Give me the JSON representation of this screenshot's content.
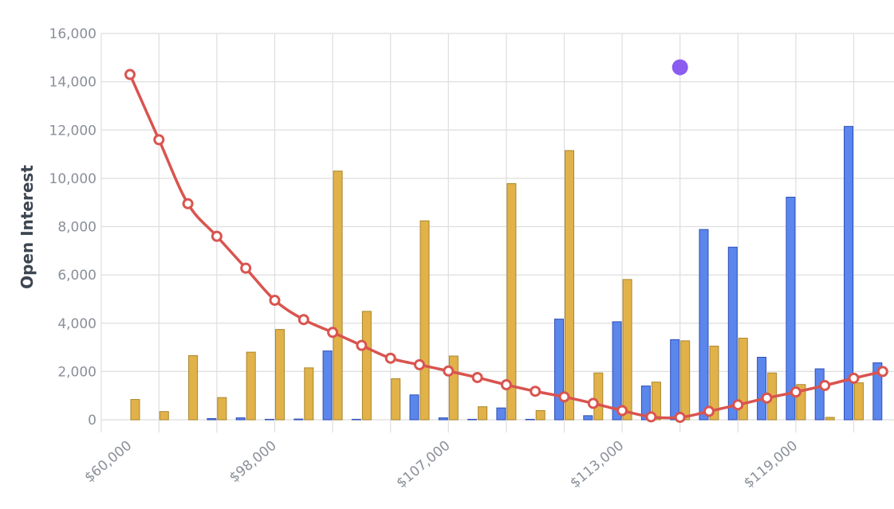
{
  "colors": {
    "call_bar": "#5b86ec",
    "call_bar_edge": "#2f4fb8",
    "put_bar": "#e2b24a",
    "put_bar_edge": "#a8862a",
    "iv_line": "#d9544f",
    "marker": "#8a5cf0",
    "grid": "#dedede",
    "tick_text": "#8a8f98",
    "axis_title": "#3d4652"
  },
  "chart_data": {
    "type": "bar",
    "ylabel": "Open Interest",
    "ylim": [
      0,
      16000
    ],
    "yticks": [
      0,
      2000,
      4000,
      6000,
      8000,
      10000,
      12000,
      14000,
      16000
    ],
    "ytick_labels": [
      "0",
      "2,000",
      "4,000",
      "6,000",
      "8,000",
      "10,000",
      "12,000",
      "14,000",
      "16,000"
    ],
    "xtick_labels": [
      "$60,000",
      "$98,000",
      "$107,000",
      "$113,000",
      "$119,000"
    ],
    "xtick_positions": [
      0,
      5,
      11,
      17,
      23
    ],
    "categories_count": 27,
    "grid": true,
    "series": [
      {
        "kind": "bar",
        "values": [
          0,
          0,
          0,
          50,
          80,
          20,
          30,
          2850,
          20,
          0,
          1030,
          80,
          20,
          490,
          20,
          4170,
          170,
          4060,
          1400,
          3320,
          7880,
          7150,
          2590,
          9220,
          2110,
          12150,
          2360
        ]
      },
      {
        "kind": "bar",
        "values": [
          840,
          340,
          2660,
          920,
          2800,
          3740,
          2150,
          10300,
          4490,
          1700,
          8240,
          2640,
          540,
          9780,
          380,
          11150,
          1940,
          5810,
          1560,
          3270,
          3050,
          3380,
          1940,
          1460,
          100,
          1530,
          0
        ]
      },
      {
        "kind": "line",
        "values": [
          14300,
          11600,
          8950,
          7600,
          6280,
          4950,
          4150,
          3620,
          3080,
          2550,
          2280,
          2020,
          1750,
          1450,
          1180,
          950,
          680,
          380,
          120,
          100,
          350,
          620,
          900,
          1150,
          1420,
          1720,
          2000
        ]
      }
    ],
    "marker": {
      "category_index": 19,
      "value": 14600
    }
  }
}
